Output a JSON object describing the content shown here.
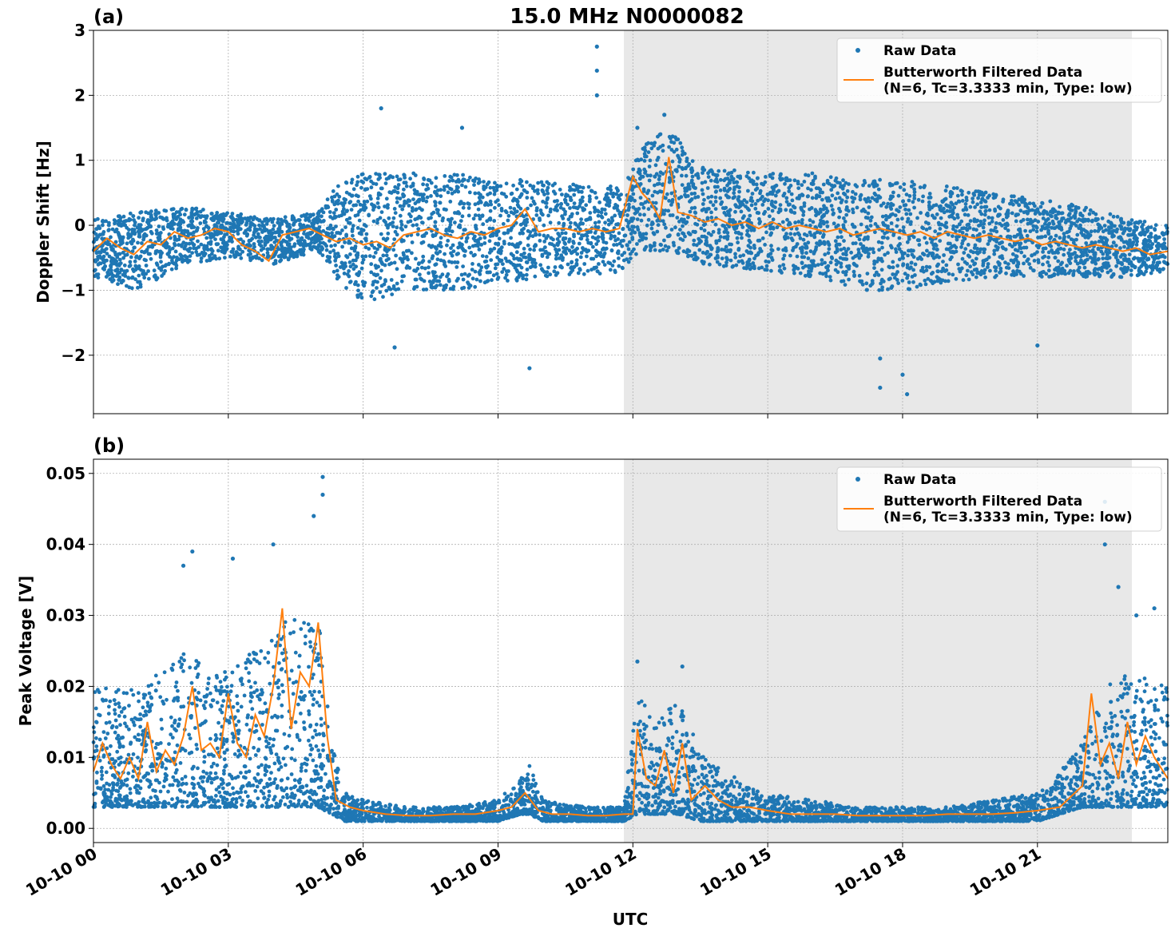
{
  "figure": {
    "title": "15.0 MHz N0000082",
    "xlabel": "UTC",
    "colors": {
      "raw": "#1f77b4",
      "filtered": "#ff7f0e",
      "shade": "#e8e8e8",
      "grid": "#b0b0b0"
    },
    "x_ticks": [
      "10-10 00",
      "10-10 03",
      "10-10 06",
      "10-10 09",
      "10-10 12",
      "10-10 15",
      "10-10 18",
      "10-10 21"
    ],
    "x_tick_hours": [
      0,
      3,
      6,
      9,
      12,
      15,
      18,
      21
    ],
    "x_range_hours": [
      0,
      23.9
    ],
    "shaded_interval_hours": [
      11.8,
      23.1
    ]
  },
  "chart_data": [
    {
      "type": "scatter",
      "panel_label": "(a)",
      "ylabel": "Doppler Shift [Hz]",
      "ylim": [
        -2.9,
        3.0
      ],
      "y_ticks": [
        3,
        2,
        1,
        0,
        -1,
        -2
      ],
      "y_tick_labels": [
        "3",
        "2",
        "1",
        "0",
        "−1",
        "−2"
      ],
      "grid": true,
      "legend_placement": "top-right",
      "legend": {
        "raw": "Raw Data",
        "filtered_line1": "Butterworth Filtered Data",
        "filtered_line2": "(N=6, Tc=3.3333 min, Type: low)"
      },
      "series": [
        {
          "name": "Butterworth Filtered Data",
          "x_hours": [
            0,
            0.3,
            0.6,
            0.9,
            1.2,
            1.5,
            1.8,
            2.1,
            2.4,
            2.7,
            3.0,
            3.3,
            3.6,
            3.9,
            4.2,
            4.5,
            4.8,
            5.1,
            5.4,
            5.7,
            6.0,
            6.3,
            6.6,
            6.9,
            7.2,
            7.5,
            7.8,
            8.1,
            8.4,
            8.7,
            9.0,
            9.3,
            9.6,
            9.9,
            10.2,
            10.5,
            10.8,
            11.1,
            11.4,
            11.7,
            12.0,
            12.2,
            12.4,
            12.6,
            12.8,
            13.0,
            13.3,
            13.6,
            13.9,
            14.2,
            14.5,
            14.8,
            15.1,
            15.4,
            15.7,
            16.0,
            16.3,
            16.6,
            16.9,
            17.2,
            17.5,
            17.8,
            18.1,
            18.4,
            18.7,
            19.0,
            19.3,
            19.6,
            19.9,
            20.2,
            20.5,
            20.8,
            21.1,
            21.4,
            21.7,
            22.0,
            22.3,
            22.6,
            22.9,
            23.2,
            23.5,
            23.9
          ],
          "y": [
            -0.4,
            -0.2,
            -0.35,
            -0.45,
            -0.25,
            -0.3,
            -0.1,
            -0.2,
            -0.15,
            -0.05,
            -0.1,
            -0.3,
            -0.4,
            -0.55,
            -0.15,
            -0.1,
            -0.05,
            -0.15,
            -0.25,
            -0.2,
            -0.3,
            -0.25,
            -0.35,
            -0.15,
            -0.1,
            -0.05,
            -0.15,
            -0.2,
            -0.1,
            -0.15,
            -0.05,
            0.0,
            0.25,
            -0.1,
            -0.05,
            -0.05,
            -0.1,
            -0.05,
            -0.1,
            -0.05,
            0.75,
            0.5,
            0.35,
            0.1,
            1.05,
            0.2,
            0.15,
            0.05,
            0.1,
            0.0,
            0.05,
            -0.05,
            0.05,
            -0.05,
            0.0,
            -0.05,
            -0.1,
            -0.05,
            -0.15,
            -0.1,
            -0.05,
            -0.1,
            -0.15,
            -0.1,
            -0.2,
            -0.1,
            -0.15,
            -0.2,
            -0.15,
            -0.2,
            -0.25,
            -0.2,
            -0.3,
            -0.25,
            -0.3,
            -0.35,
            -0.3,
            -0.35,
            -0.4,
            -0.35,
            -0.45,
            -0.4
          ]
        },
        {
          "name": "Raw Data",
          "envelope_x_hours": [
            0,
            1,
            2,
            3,
            4,
            5,
            5.5,
            6,
            7,
            8,
            9,
            10,
            11,
            11.8,
            12.2,
            12.8,
            13.5,
            15,
            16,
            17,
            18,
            19,
            20,
            21,
            22,
            23,
            23.9
          ],
          "envelope_upper": [
            0.1,
            0.2,
            0.3,
            0.2,
            0.1,
            0.2,
            0.7,
            0.8,
            0.8,
            0.8,
            0.7,
            0.7,
            0.6,
            0.6,
            1.2,
            1.5,
            0.9,
            0.8,
            0.8,
            0.7,
            0.7,
            0.6,
            0.5,
            0.4,
            0.3,
            0.1,
            0.0
          ],
          "envelope_lower": [
            -0.8,
            -1.0,
            -0.6,
            -0.5,
            -0.6,
            -0.4,
            -0.9,
            -1.2,
            -1.0,
            -1.0,
            -0.9,
            -0.8,
            -0.8,
            -0.7,
            -0.4,
            -0.4,
            -0.6,
            -0.7,
            -0.8,
            -1.0,
            -1.0,
            -0.9,
            -0.8,
            -0.8,
            -0.8,
            -0.8,
            -0.7
          ],
          "outliers_x_hours": [
            11.2,
            11.2,
            11.2,
            9.7,
            6.7,
            17.5,
            17.5,
            18.1,
            18.0,
            12.1,
            12.7,
            6.4,
            8.2,
            21.0
          ],
          "outliers_y": [
            2.75,
            2.38,
            2.0,
            -2.2,
            -1.88,
            -2.5,
            -2.05,
            -2.6,
            -2.3,
            1.5,
            1.7,
            1.8,
            1.5,
            -1.85
          ]
        }
      ]
    },
    {
      "type": "scatter",
      "panel_label": "(b)",
      "ylabel": "Peak Voltage [V]",
      "ylim": [
        -0.002,
        0.052
      ],
      "y_ticks": [
        0.05,
        0.04,
        0.03,
        0.02,
        0.01,
        0.0
      ],
      "y_tick_labels": [
        "0.05",
        "0.04",
        "0.03",
        "0.02",
        "0.01",
        "0.00"
      ],
      "grid": true,
      "legend_placement": "top-right",
      "legend": {
        "raw": "Raw Data",
        "filtered_line1": "Butterworth Filtered Data",
        "filtered_line2": "(N=6, Tc=3.3333 min, Type: low)"
      },
      "series": [
        {
          "name": "Butterworth Filtered Data",
          "x_hours": [
            0,
            0.2,
            0.4,
            0.6,
            0.8,
            1.0,
            1.2,
            1.4,
            1.6,
            1.8,
            2.0,
            2.2,
            2.4,
            2.6,
            2.8,
            3.0,
            3.2,
            3.4,
            3.6,
            3.8,
            4.0,
            4.2,
            4.4,
            4.6,
            4.8,
            5.0,
            5.2,
            5.4,
            5.7,
            6.0,
            6.5,
            7.0,
            7.5,
            8.0,
            8.5,
            9.0,
            9.3,
            9.6,
            9.9,
            10.2,
            10.6,
            11.0,
            11.4,
            11.8,
            12.0,
            12.1,
            12.3,
            12.5,
            12.7,
            12.9,
            13.1,
            13.3,
            13.6,
            13.9,
            14.2,
            14.6,
            15.0,
            15.5,
            16.0,
            16.5,
            17.0,
            17.5,
            18.0,
            18.5,
            19.0,
            19.5,
            20.0,
            20.5,
            21.0,
            21.5,
            22.0,
            22.2,
            22.4,
            22.6,
            22.8,
            23.0,
            23.2,
            23.4,
            23.6,
            23.9
          ],
          "y": [
            0.008,
            0.012,
            0.009,
            0.007,
            0.01,
            0.007,
            0.015,
            0.008,
            0.011,
            0.009,
            0.013,
            0.02,
            0.011,
            0.012,
            0.01,
            0.019,
            0.012,
            0.01,
            0.016,
            0.013,
            0.02,
            0.031,
            0.014,
            0.022,
            0.02,
            0.029,
            0.013,
            0.004,
            0.003,
            0.0025,
            0.002,
            0.0018,
            0.0018,
            0.002,
            0.002,
            0.0025,
            0.003,
            0.005,
            0.0025,
            0.002,
            0.002,
            0.0018,
            0.0018,
            0.002,
            0.002,
            0.014,
            0.007,
            0.006,
            0.011,
            0.005,
            0.012,
            0.004,
            0.006,
            0.004,
            0.003,
            0.003,
            0.0025,
            0.002,
            0.002,
            0.002,
            0.0018,
            0.0018,
            0.0018,
            0.0018,
            0.002,
            0.002,
            0.002,
            0.0022,
            0.0025,
            0.003,
            0.006,
            0.019,
            0.009,
            0.012,
            0.007,
            0.015,
            0.009,
            0.013,
            0.01,
            0.007
          ]
        },
        {
          "name": "Raw Data",
          "envelope_x_hours": [
            0,
            1,
            2,
            3,
            4,
            4.5,
            5,
            5.3,
            5.6,
            6,
            7,
            8,
            9,
            9.5,
            9.7,
            10,
            11,
            11.8,
            12.1,
            12.5,
            13,
            13.5,
            14,
            15,
            16,
            17,
            18,
            19,
            20,
            21,
            21.5,
            22,
            22.5,
            23,
            23.9
          ],
          "envelope_upper": [
            0.02,
            0.02,
            0.025,
            0.022,
            0.028,
            0.03,
            0.03,
            0.012,
            0.005,
            0.004,
            0.003,
            0.003,
            0.004,
            0.007,
            0.009,
            0.004,
            0.003,
            0.003,
            0.02,
            0.015,
            0.018,
            0.012,
            0.008,
            0.005,
            0.004,
            0.003,
            0.003,
            0.003,
            0.004,
            0.005,
            0.008,
            0.012,
            0.02,
            0.022,
            0.02
          ],
          "envelope_lower": [
            0.003,
            0.003,
            0.003,
            0.003,
            0.003,
            0.003,
            0.003,
            0.002,
            0.001,
            0.001,
            0.001,
            0.001,
            0.001,
            0.002,
            0.002,
            0.001,
            0.001,
            0.001,
            0.002,
            0.002,
            0.002,
            0.001,
            0.001,
            0.001,
            0.001,
            0.001,
            0.001,
            0.001,
            0.001,
            0.001,
            0.002,
            0.003,
            0.003,
            0.003,
            0.003
          ],
          "outliers_x_hours": [
            5.1,
            5.1,
            4.9,
            4.0,
            3.1,
            2.2,
            2.0,
            22.5,
            22.5,
            22.8,
            23.2,
            23.6,
            12.1,
            13.1
          ],
          "outliers_y": [
            0.0495,
            0.047,
            0.044,
            0.04,
            0.038,
            0.039,
            0.037,
            0.046,
            0.04,
            0.034,
            0.03,
            0.031,
            0.0235,
            0.0228
          ]
        }
      ]
    }
  ]
}
